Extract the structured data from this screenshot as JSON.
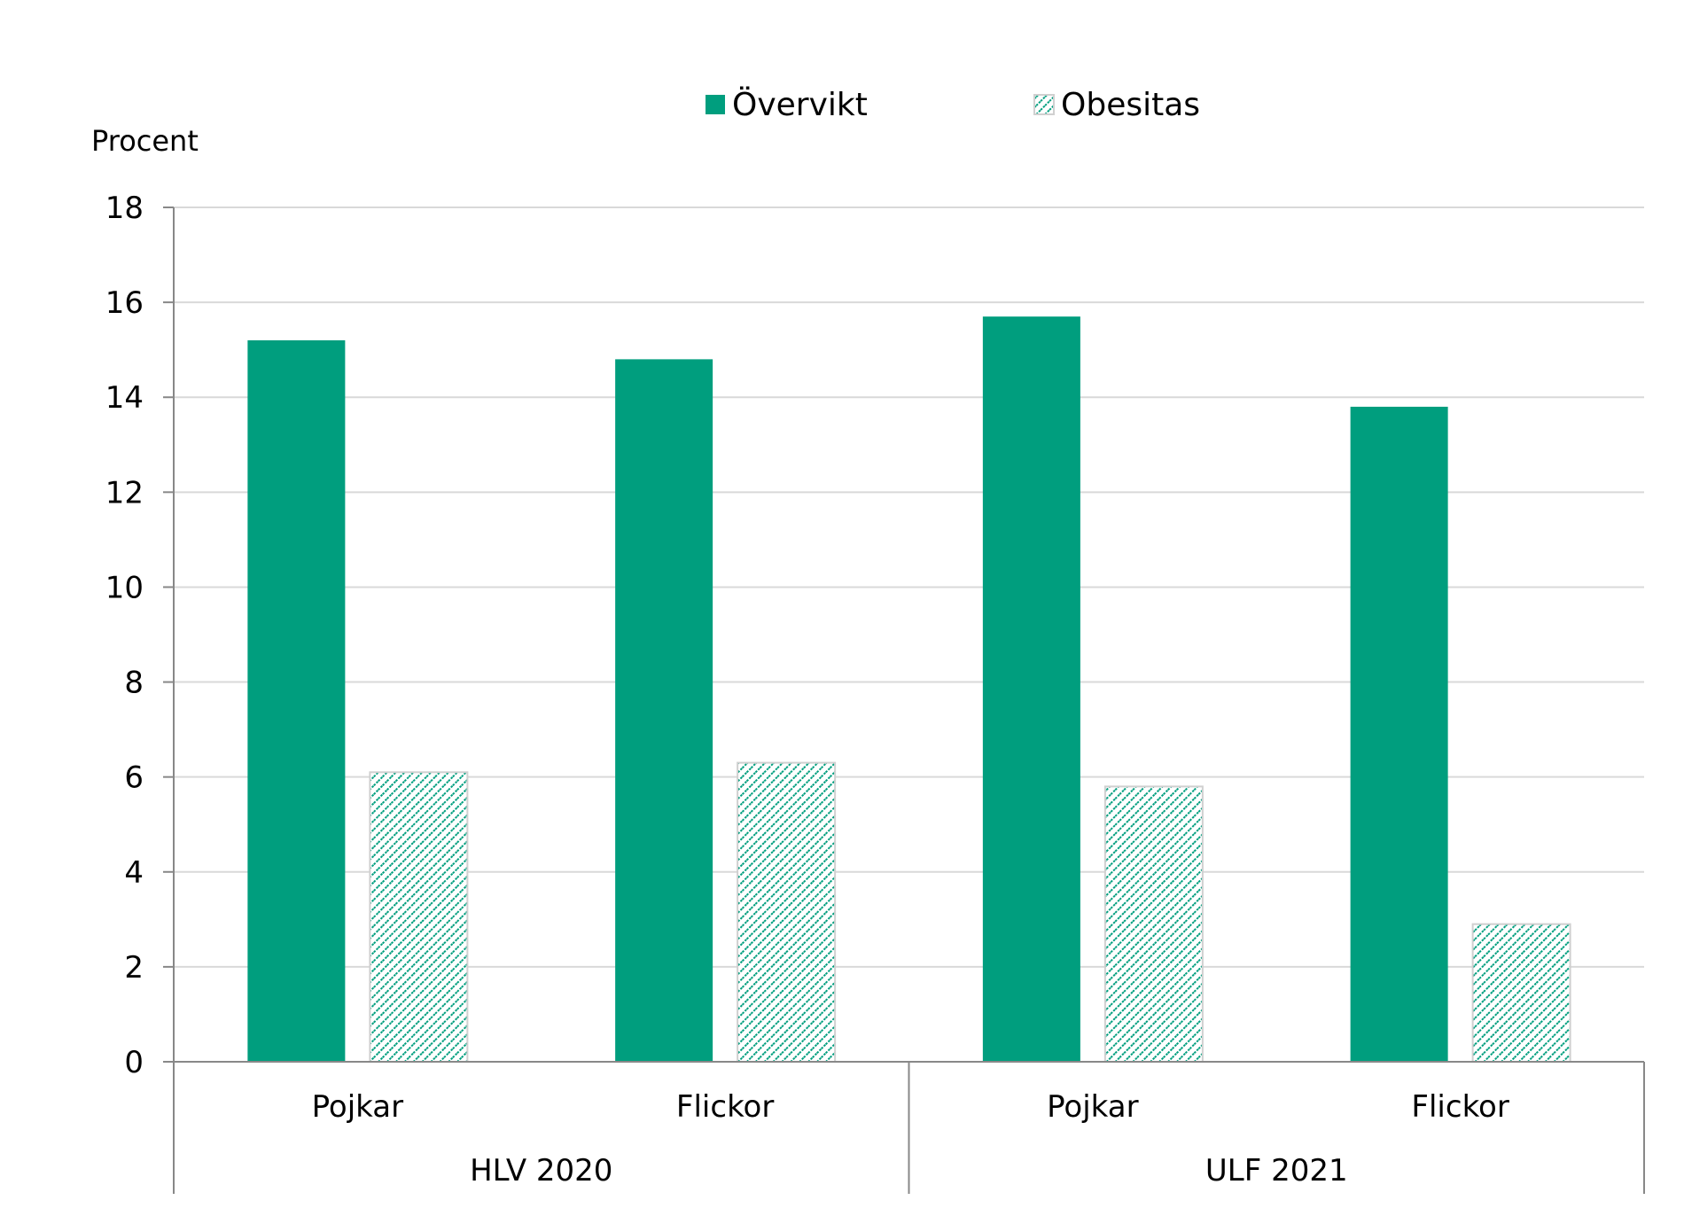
{
  "chart_data": {
    "type": "bar",
    "ylabel": "Procent",
    "ylim": [
      0,
      18
    ],
    "yticks": [
      0,
      2,
      4,
      6,
      8,
      10,
      12,
      14,
      16,
      18
    ],
    "grid": true,
    "legend_position": "top-center",
    "groups": [
      {
        "label": "HLV 2020",
        "categories": [
          "Pojkar",
          "Flickor"
        ]
      },
      {
        "label": "ULF 2021",
        "categories": [
          "Pojkar",
          "Flickor"
        ]
      }
    ],
    "categories": [
      "Pojkar",
      "Flickor",
      "Pojkar",
      "Flickor"
    ],
    "series": [
      {
        "name": "Övervikt",
        "values": [
          15.2,
          14.8,
          15.7,
          13.8
        ],
        "color": "#009e7e",
        "pattern": "solid"
      },
      {
        "name": "Obesitas",
        "values": [
          6.1,
          6.3,
          5.8,
          2.9
        ],
        "color": "#009e7e",
        "pattern": "diagonal-hatch"
      }
    ]
  }
}
